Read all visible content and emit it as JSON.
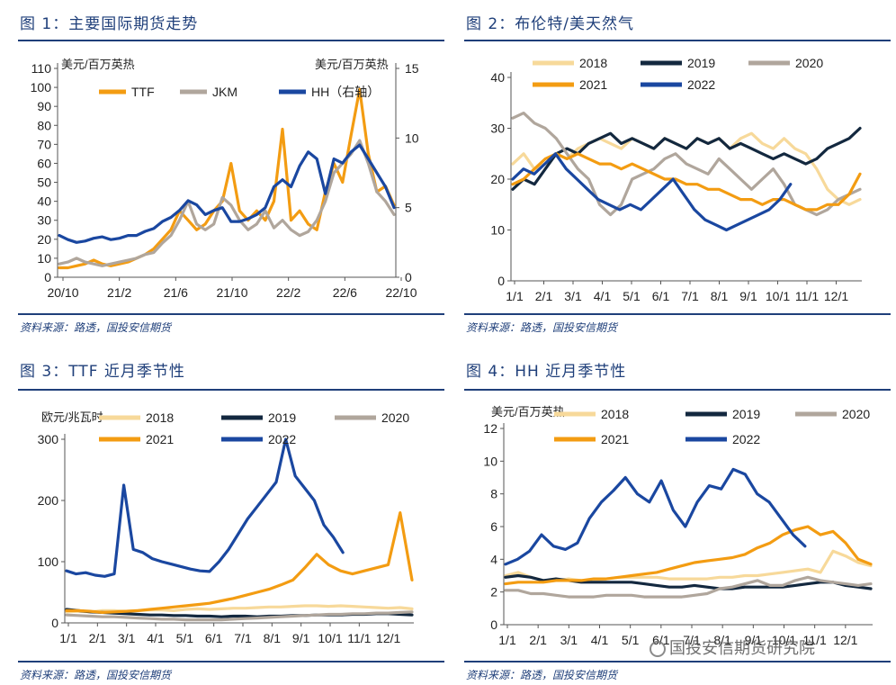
{
  "panels": [
    {
      "title": "图 1：主要国际期货走势",
      "source": "资料来源：路透，国投安信期货"
    },
    {
      "title": "图 2：布伦特/美天然气",
      "source": "资料来源：路透，国投安信期货"
    },
    {
      "title": "图 3：TTF 近月季节性",
      "source": "资料来源：路透，国投安信期货"
    },
    {
      "title": "图 4：HH 近月季节性",
      "source": "资料来源：路透，国投安信期货"
    }
  ],
  "watermark": "国投安信期货研究院",
  "chart_data": [
    {
      "type": "line",
      "title": "主要国际期货走势",
      "ylabel": "美元/百万英热",
      "ylabel_right": "美元/百万英热",
      "x_ticks": [
        "20/10",
        "21/2",
        "21/6",
        "21/10",
        "22/2",
        "22/6",
        "22/10"
      ],
      "y_ticks": [
        0,
        10,
        20,
        30,
        40,
        50,
        60,
        70,
        80,
        90,
        100,
        110
      ],
      "y2_ticks": [
        0,
        5,
        10,
        15
      ],
      "ylim": [
        0,
        110
      ],
      "y2lim": [
        0,
        15
      ],
      "series": [
        {
          "name": "TTF",
          "color": "#f39c12",
          "axis": "left",
          "values": [
            5,
            5,
            6,
            7,
            9,
            7,
            6,
            7,
            8,
            10,
            12,
            15,
            20,
            25,
            35,
            30,
            25,
            28,
            35,
            40,
            60,
            35,
            30,
            35,
            30,
            40,
            78,
            30,
            35,
            28,
            25,
            45,
            60,
            50,
            75,
            99,
            65,
            45,
            48,
            38
          ]
        },
        {
          "name": "JKM",
          "color": "#b0a69c",
          "axis": "left",
          "values": [
            7,
            8,
            10,
            8,
            7,
            6,
            7,
            8,
            9,
            10,
            12,
            13,
            18,
            22,
            30,
            40,
            28,
            25,
            28,
            42,
            38,
            30,
            25,
            28,
            35,
            26,
            30,
            25,
            22,
            24,
            30,
            40,
            55,
            60,
            65,
            72,
            60,
            45,
            40,
            33
          ]
        },
        {
          "name": "HH（右轴）",
          "color": "#1a47a0",
          "axis": "right",
          "values": [
            3,
            2.7,
            2.5,
            2.6,
            2.8,
            2.9,
            2.7,
            2.8,
            3.0,
            3.0,
            3.3,
            3.5,
            4.0,
            4.3,
            4.8,
            5.5,
            5.2,
            4.5,
            4.8,
            5.0,
            4.0,
            4.0,
            4.2,
            4.5,
            5.0,
            6.5,
            7.0,
            6.5,
            8.0,
            9.0,
            8.5,
            6.0,
            8.5,
            8.2,
            9.0,
            9.5,
            8.5,
            7.5,
            6.5,
            5.0
          ]
        }
      ]
    },
    {
      "type": "line",
      "title": "布伦特/美天然气",
      "x_ticks": [
        "1/1",
        "2/1",
        "3/1",
        "4/1",
        "5/1",
        "6/1",
        "7/1",
        "8/1",
        "9/1",
        "10/1",
        "11/1",
        "12/1"
      ],
      "y_ticks": [
        0,
        10,
        20,
        30,
        40
      ],
      "ylim": [
        0,
        40
      ],
      "series": [
        {
          "name": "2018",
          "color": "#f7d99a",
          "values": [
            23,
            25,
            22,
            23,
            25,
            24,
            26,
            27,
            28,
            27,
            26,
            28,
            27,
            26,
            28,
            27,
            26,
            28,
            27,
            28,
            26,
            28,
            29,
            27,
            26,
            28,
            26,
            25,
            22,
            18,
            16,
            15,
            16
          ]
        },
        {
          "name": "2019",
          "color": "#13283f",
          "values": [
            18,
            20,
            19,
            22,
            25,
            26,
            25,
            27,
            28,
            29,
            27,
            28,
            27,
            26,
            28,
            27,
            26,
            28,
            27,
            28,
            26,
            27,
            26,
            25,
            24,
            25,
            24,
            23,
            24,
            26,
            27,
            28,
            30
          ]
        },
        {
          "name": "2020",
          "color": "#b0a69c",
          "values": [
            32,
            33,
            31,
            30,
            28,
            25,
            22,
            20,
            15,
            13,
            15,
            20,
            21,
            22,
            24,
            25,
            23,
            22,
            21,
            24,
            22,
            20,
            18,
            20,
            22,
            19,
            15,
            14,
            13,
            14,
            16,
            17,
            18
          ]
        },
        {
          "name": "2021",
          "color": "#f39c12",
          "values": [
            19,
            20,
            22,
            24,
            25,
            24,
            25,
            24,
            23,
            23,
            22,
            23,
            22,
            21,
            20,
            20,
            19,
            19,
            18,
            18,
            17,
            16,
            16,
            15,
            16,
            16,
            15,
            14,
            14,
            15,
            15,
            17,
            21
          ]
        },
        {
          "name": "2022",
          "color": "#1a47a0",
          "values": [
            20,
            22,
            21,
            23,
            25,
            22,
            20,
            18,
            16,
            15,
            14,
            15,
            14,
            16,
            18,
            20,
            17,
            14,
            12,
            11,
            10,
            11,
            12,
            13,
            14,
            16,
            19
          ]
        }
      ]
    },
    {
      "type": "line",
      "title": "TTF 近月季节性",
      "ylabel": "欧元/兆瓦时",
      "x_ticks": [
        "1/1",
        "2/1",
        "3/1",
        "4/1",
        "5/1",
        "6/1",
        "7/1",
        "8/1",
        "9/1",
        "10/1",
        "11/1",
        "12/1"
      ],
      "y_ticks": [
        0,
        100,
        200,
        300
      ],
      "ylim": [
        0,
        300
      ],
      "series": [
        {
          "name": "2018",
          "color": "#f7d99a",
          "values": [
            18,
            19,
            18,
            20,
            20,
            19,
            20,
            21,
            21,
            20,
            22,
            23,
            22,
            23,
            24,
            24,
            25,
            26,
            26,
            27,
            28,
            28,
            27,
            28,
            27,
            26,
            25,
            24,
            25,
            23
          ]
        },
        {
          "name": "2019",
          "color": "#13283f",
          "values": [
            22,
            20,
            18,
            17,
            16,
            15,
            14,
            13,
            13,
            12,
            12,
            11,
            11,
            10,
            11,
            11,
            10,
            11,
            11,
            12,
            12,
            13,
            13,
            13,
            14,
            14,
            15,
            15,
            14,
            13
          ]
        },
        {
          "name": "2020",
          "color": "#b0a69c",
          "values": [
            13,
            12,
            11,
            10,
            10,
            9,
            8,
            7,
            6,
            6,
            5,
            5,
            5,
            5,
            6,
            7,
            8,
            9,
            10,
            11,
            12,
            13,
            14,
            14,
            15,
            15,
            16,
            16,
            17,
            18
          ]
        },
        {
          "name": "2021",
          "color": "#f39c12",
          "values": [
            20,
            20,
            19,
            17,
            18,
            19,
            20,
            22,
            24,
            26,
            28,
            30,
            32,
            36,
            40,
            45,
            50,
            55,
            62,
            70,
            90,
            112,
            95,
            85,
            80,
            85,
            90,
            95,
            180,
            70
          ]
        },
        {
          "name": "2022",
          "color": "#1a47a0",
          "values": [
            85,
            80,
            82,
            78,
            76,
            80,
            225,
            120,
            115,
            105,
            100,
            96,
            92,
            88,
            85,
            84,
            100,
            120,
            145,
            170,
            190,
            210,
            230,
            300,
            240,
            220,
            200,
            160,
            140,
            115
          ]
        }
      ]
    },
    {
      "type": "line",
      "title": "HH 近月季节性",
      "ylabel": "美元/百万英热",
      "x_ticks": [
        "1/1",
        "2/1",
        "3/1",
        "4/1",
        "5/1",
        "6/1",
        "7/1",
        "8/1",
        "9/1",
        "10/1",
        "11/1",
        "12/1"
      ],
      "y_ticks": [
        0,
        2,
        4,
        6,
        8,
        10,
        12
      ],
      "ylim": [
        0,
        12
      ],
      "series": [
        {
          "name": "2018",
          "color": "#f7d99a",
          "values": [
            3.0,
            3.2,
            2.9,
            2.7,
            2.7,
            2.8,
            2.7,
            2.7,
            2.8,
            2.9,
            2.9,
            2.9,
            2.9,
            2.8,
            2.8,
            2.8,
            2.8,
            2.9,
            2.9,
            3.0,
            3.0,
            3.1,
            3.2,
            3.3,
            3.4,
            3.2,
            4.5,
            4.2,
            3.8,
            3.6
          ]
        },
        {
          "name": "2019",
          "color": "#13283f",
          "values": [
            2.9,
            3.0,
            2.9,
            2.7,
            2.8,
            2.7,
            2.6,
            2.6,
            2.6,
            2.6,
            2.6,
            2.5,
            2.4,
            2.3,
            2.3,
            2.4,
            2.3,
            2.2,
            2.2,
            2.3,
            2.3,
            2.3,
            2.3,
            2.4,
            2.5,
            2.6,
            2.6,
            2.4,
            2.3,
            2.2
          ]
        },
        {
          "name": "2020",
          "color": "#b0a69c",
          "values": [
            2.1,
            2.1,
            1.9,
            1.9,
            1.8,
            1.7,
            1.7,
            1.7,
            1.8,
            1.8,
            1.8,
            1.7,
            1.7,
            1.7,
            1.7,
            1.8,
            1.9,
            2.2,
            2.3,
            2.5,
            2.7,
            2.4,
            2.4,
            2.7,
            2.9,
            2.7,
            2.6,
            2.5,
            2.4,
            2.5
          ]
        },
        {
          "name": "2021",
          "color": "#f39c12",
          "values": [
            2.5,
            2.6,
            2.6,
            2.6,
            2.7,
            2.7,
            2.7,
            2.8,
            2.8,
            2.9,
            3.0,
            3.1,
            3.2,
            3.4,
            3.6,
            3.8,
            3.9,
            4.0,
            4.1,
            4.3,
            4.7,
            5.0,
            5.5,
            5.8,
            6.0,
            5.5,
            5.7,
            5.0,
            4.0,
            3.7
          ]
        },
        {
          "name": "2022",
          "color": "#1a47a0",
          "values": [
            3.7,
            4.0,
            4.5,
            5.5,
            4.8,
            4.6,
            5.0,
            6.5,
            7.5,
            8.2,
            9.0,
            8.0,
            7.5,
            8.8,
            7.0,
            6.0,
            7.5,
            8.5,
            8.3,
            9.5,
            9.2,
            8.0,
            7.5,
            6.5,
            5.5,
            4.8
          ]
        }
      ]
    }
  ]
}
